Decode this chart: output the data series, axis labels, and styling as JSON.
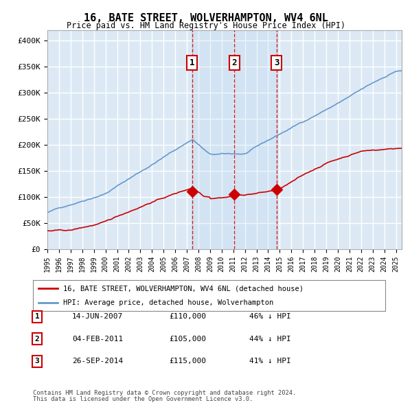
{
  "title": "16, BATE STREET, WOLVERHAMPTON, WV4 6NL",
  "subtitle": "Price paid vs. HM Land Registry's House Price Index (HPI)",
  "hpi_color": "#6699cc",
  "price_color": "#cc0000",
  "bg_color": "#ffffff",
  "plot_bg_color": "#dce9f5",
  "grid_color": "#ffffff",
  "ylim": [
    0,
    420000
  ],
  "yticks": [
    0,
    50000,
    100000,
    150000,
    200000,
    250000,
    300000,
    350000,
    400000
  ],
  "ytick_labels": [
    "£0",
    "£50K",
    "£100K",
    "£150K",
    "£200K",
    "£250K",
    "£300K",
    "£350K",
    "£400K"
  ],
  "transactions": [
    {
      "date_str": "14-JUN-2007",
      "date_x": 2007.45,
      "price": 110000,
      "label": "1",
      "pct": "46%",
      "dir": "↓"
    },
    {
      "date_str": "04-FEB-2011",
      "date_x": 2011.09,
      "price": 105000,
      "label": "2",
      "pct": "44%",
      "dir": "↓"
    },
    {
      "date_str": "26-SEP-2014",
      "date_x": 2014.73,
      "price": 115000,
      "label": "3",
      "pct": "41%",
      "dir": "↓"
    }
  ],
  "legend_line1": "16, BATE STREET, WOLVERHAMPTON, WV4 6NL (detached house)",
  "legend_line2": "HPI: Average price, detached house, Wolverhampton",
  "footer1": "Contains HM Land Registry data © Crown copyright and database right 2024.",
  "footer2": "This data is licensed under the Open Government Licence v3.0.",
  "xlim_start": 1995,
  "xlim_end": 2025.5,
  "n_months": 366
}
